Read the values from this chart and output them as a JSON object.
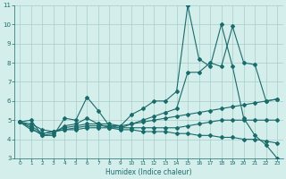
{
  "xlabel": "Humidex (Indice chaleur)",
  "x": [
    0,
    1,
    2,
    3,
    4,
    5,
    6,
    7,
    8,
    9,
    10,
    11,
    12,
    13,
    14,
    15,
    16,
    17,
    18,
    19,
    20,
    21,
    22,
    23
  ],
  "line_spiky": [
    4.9,
    5.0,
    4.2,
    4.2,
    5.1,
    5.0,
    6.2,
    5.5,
    4.7,
    4.7,
    5.3,
    5.6,
    6.0,
    6.0,
    6.5,
    11.0,
    8.2,
    7.8,
    10.0,
    7.8,
    5.1,
    4.2,
    3.7,
    3.0
  ],
  "line_rising": [
    4.9,
    4.6,
    4.2,
    4.3,
    4.7,
    4.8,
    5.1,
    4.8,
    4.6,
    4.6,
    4.8,
    5.0,
    5.2,
    5.4,
    5.6,
    7.5,
    7.5,
    8.0,
    7.8,
    9.9,
    8.0,
    7.9,
    6.0,
    6.1
  ],
  "line_gently_rising": [
    4.9,
    4.7,
    4.3,
    4.4,
    4.6,
    4.7,
    4.8,
    4.8,
    4.8,
    4.7,
    4.8,
    4.9,
    5.0,
    5.1,
    5.2,
    5.3,
    5.4,
    5.5,
    5.6,
    5.7,
    5.8,
    5.9,
    6.0,
    6.1
  ],
  "line_flat": [
    4.9,
    4.8,
    4.5,
    4.4,
    4.5,
    4.6,
    4.7,
    4.7,
    4.7,
    4.6,
    4.6,
    4.6,
    4.6,
    4.6,
    4.6,
    4.7,
    4.8,
    4.9,
    5.0,
    5.0,
    5.0,
    5.0,
    5.0,
    5.0
  ],
  "line_declining": [
    4.9,
    4.5,
    4.3,
    4.4,
    4.5,
    4.5,
    4.6,
    4.6,
    4.6,
    4.5,
    4.5,
    4.4,
    4.4,
    4.4,
    4.3,
    4.3,
    4.2,
    4.2,
    4.1,
    4.1,
    4.0,
    4.0,
    3.9,
    3.8
  ],
  "ylim": [
    3,
    11
  ],
  "xlim": [
    -0.5,
    23.5
  ],
  "yticks": [
    3,
    4,
    5,
    6,
    7,
    8,
    9,
    10,
    11
  ],
  "xticks": [
    0,
    1,
    2,
    3,
    4,
    5,
    6,
    7,
    8,
    9,
    10,
    11,
    12,
    13,
    14,
    15,
    16,
    17,
    18,
    19,
    20,
    21,
    22,
    23
  ],
  "line_color": "#1a6b6b",
  "bg_color": "#d4eeeb",
  "grid_color": "#a8ceca"
}
